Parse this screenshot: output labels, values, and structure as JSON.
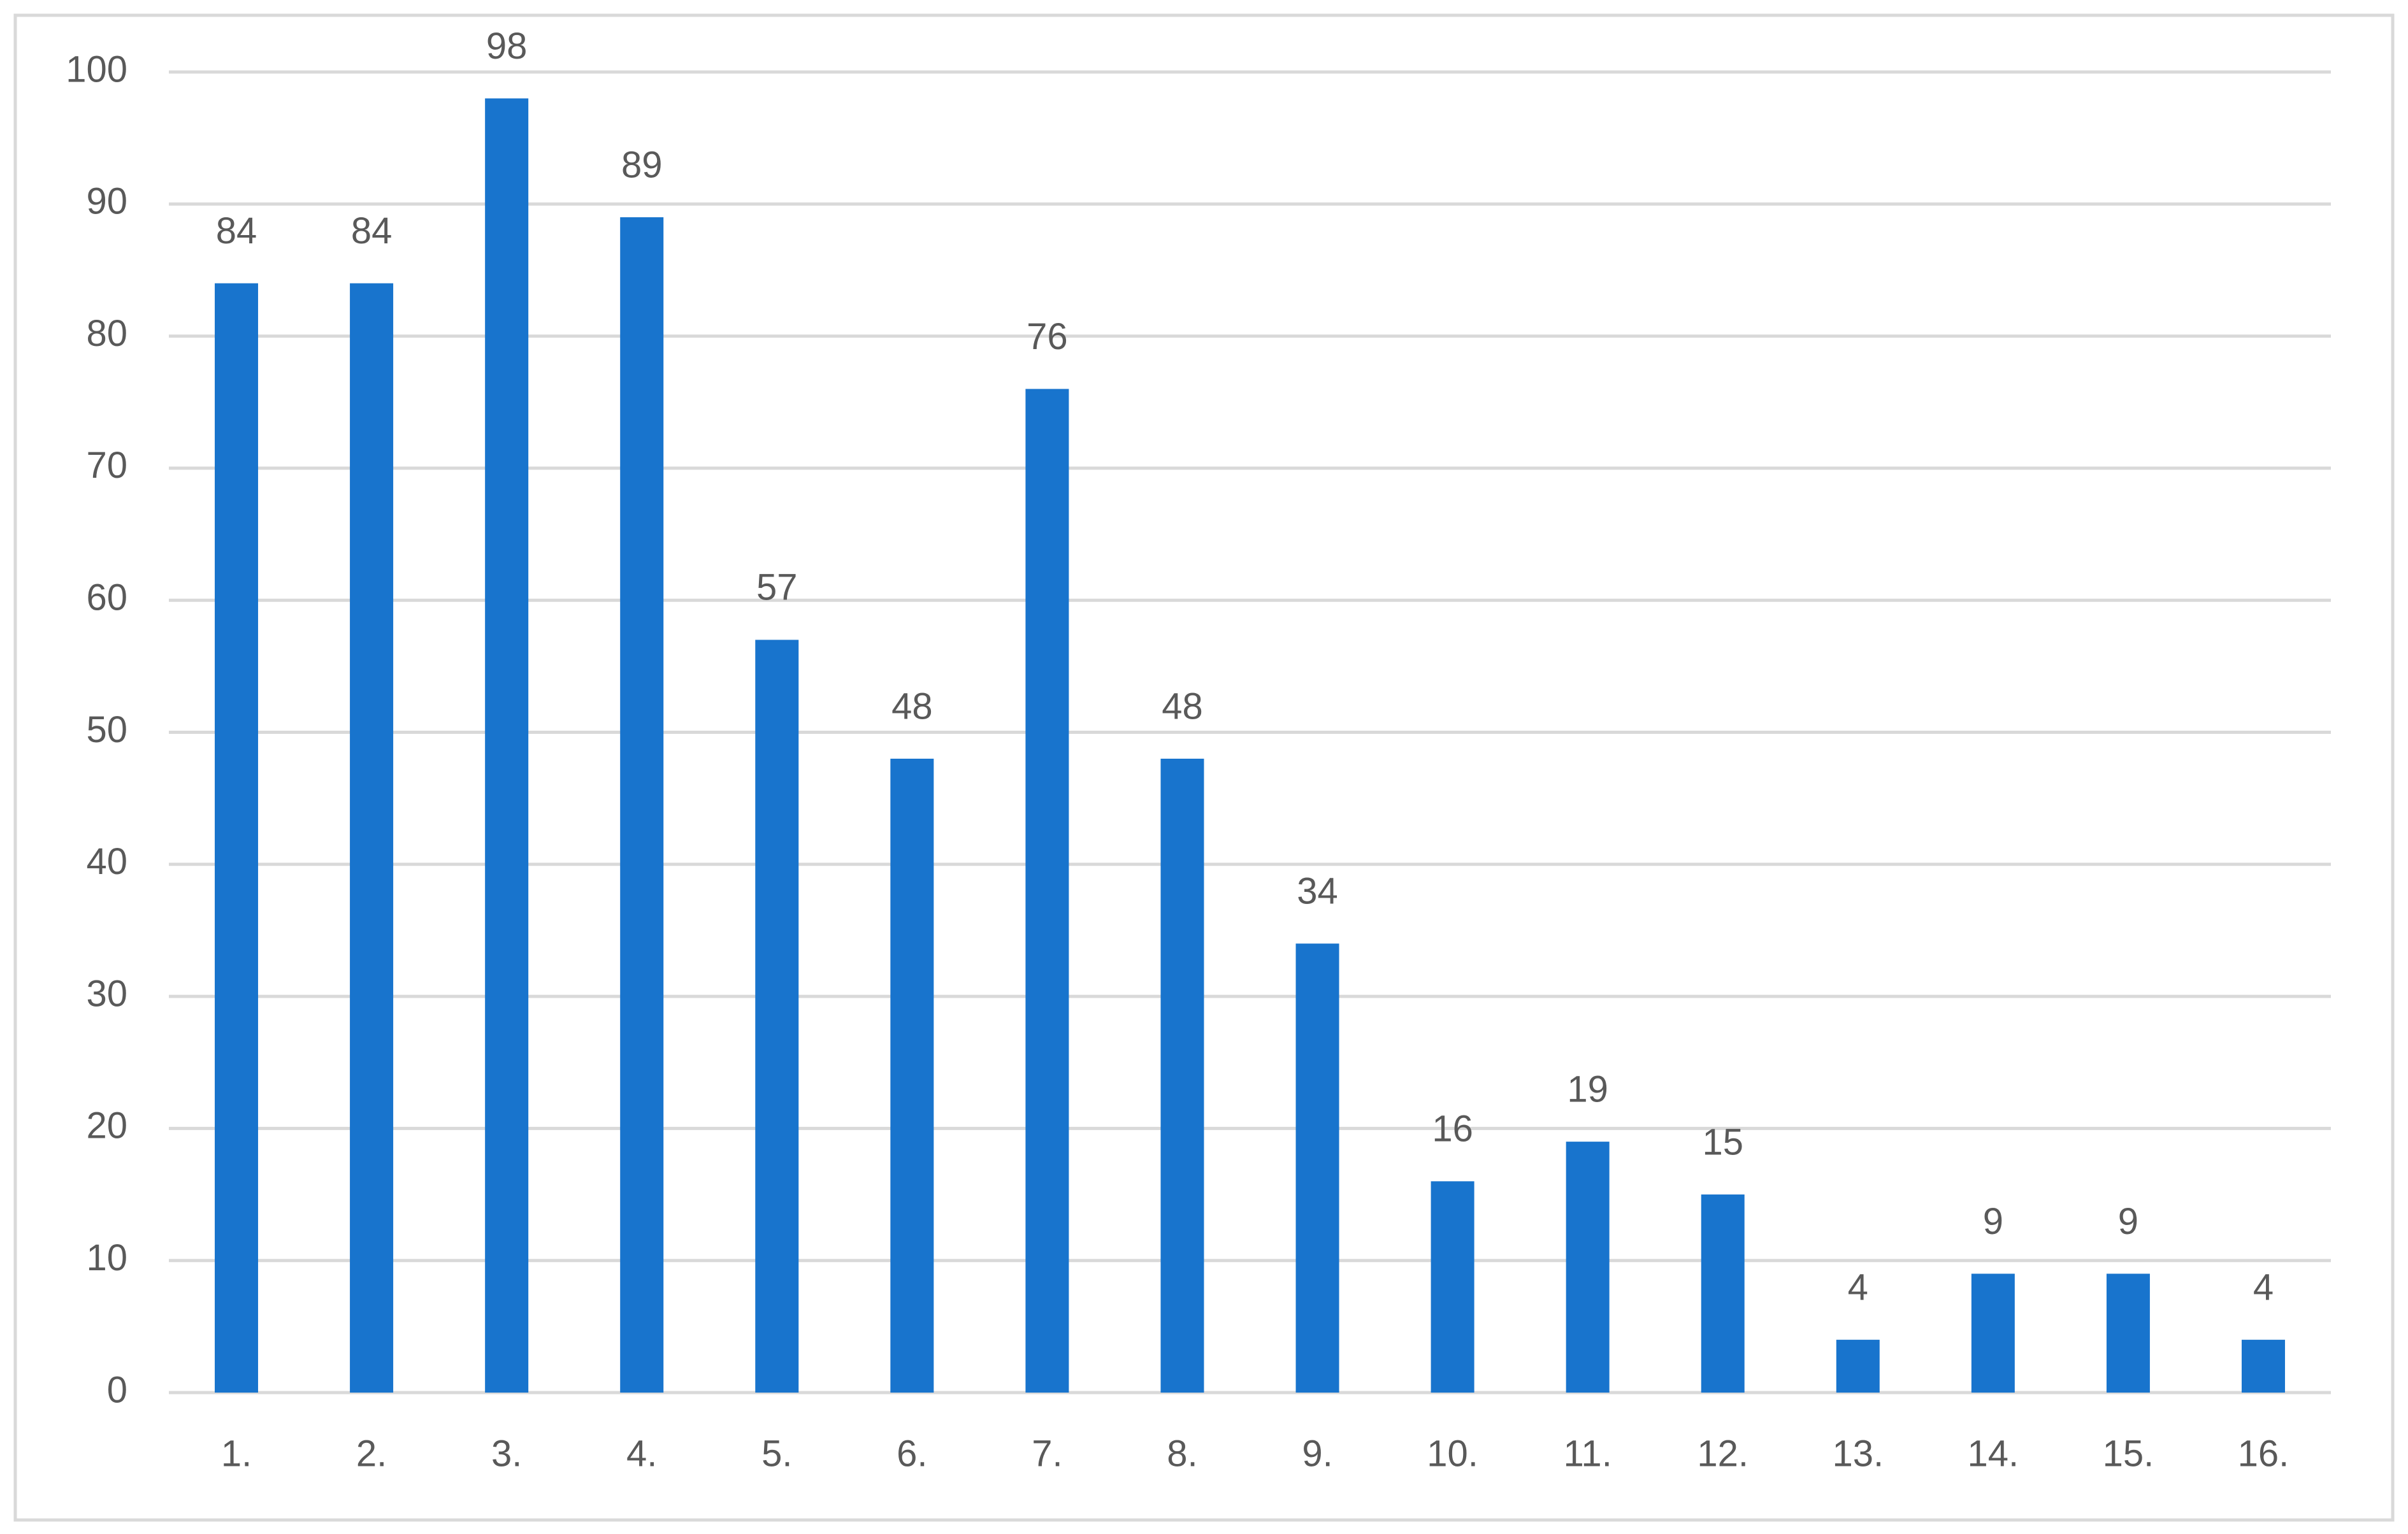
{
  "chart_data": {
    "type": "bar",
    "categories": [
      "1.",
      "2.",
      "3.",
      "4.",
      "5.",
      "6.",
      "7.",
      "8.",
      "9.",
      "10.",
      "11.",
      "12.",
      "13.",
      "14.",
      "15.",
      "16."
    ],
    "values": [
      84,
      84,
      98,
      89,
      57,
      48,
      76,
      48,
      34,
      16,
      19,
      15,
      4,
      9,
      9,
      4
    ],
    "color": "#1874cd",
    "ylim": [
      0,
      100
    ],
    "yticks": [
      0,
      10,
      20,
      30,
      40,
      50,
      60,
      70,
      80,
      90,
      100
    ],
    "grid": true
  }
}
